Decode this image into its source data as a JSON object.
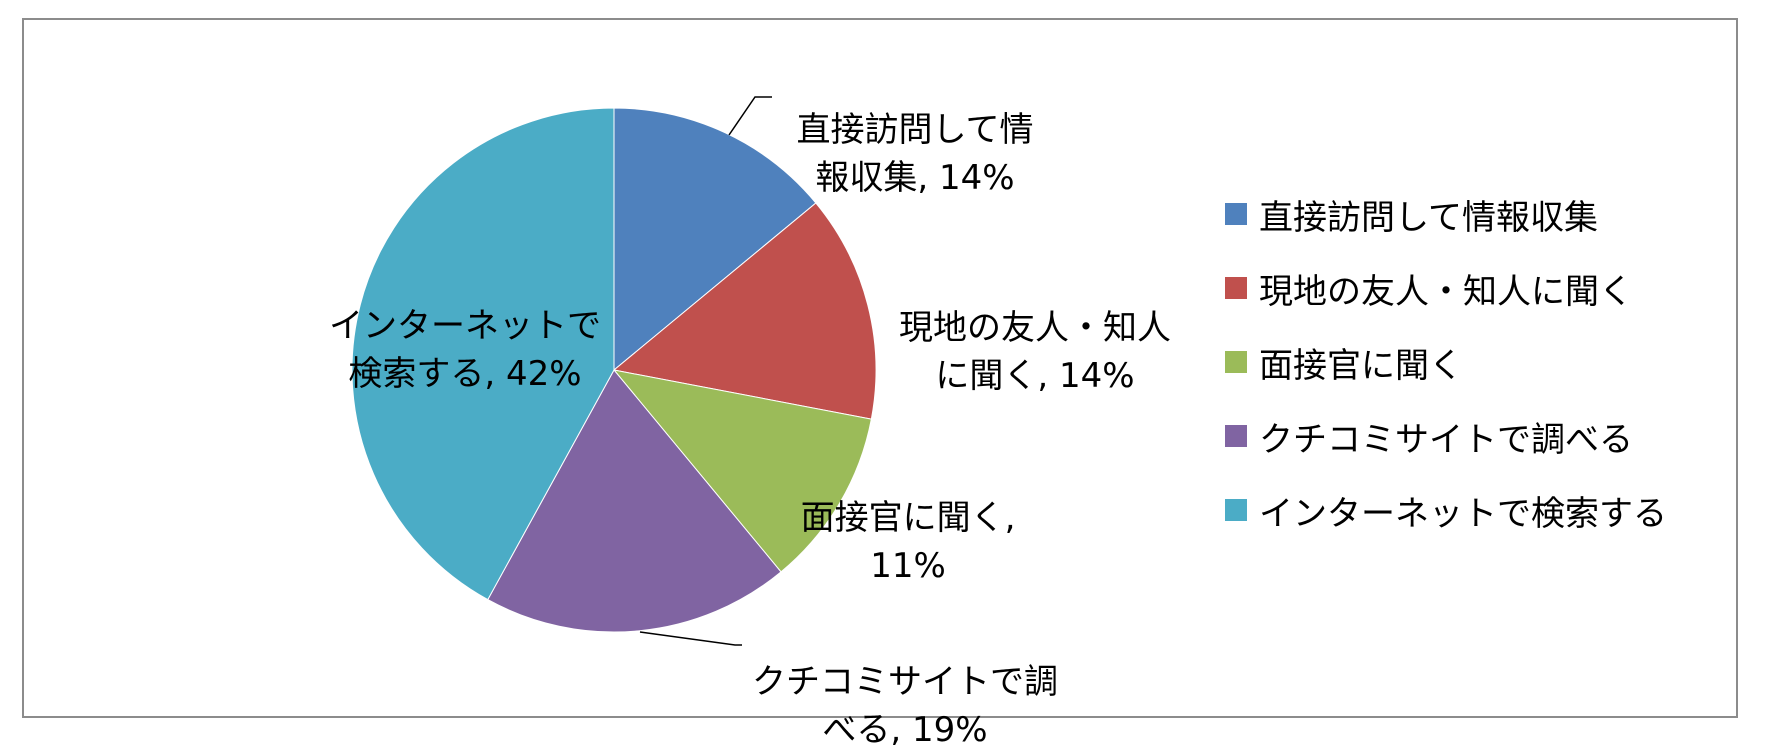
{
  "chart_data": {
    "type": "pie",
    "title": "",
    "legend_position": "right",
    "slices": [
      {
        "name": "直接訪問して情報収集",
        "value": 14,
        "label_name": "直接訪問して情\n報収集",
        "label_value": "14%",
        "color": "#4F81BD"
      },
      {
        "name": "現地の友人・知人に聞く",
        "value": 14,
        "label_name": "現地の友人・知人\nに聞く",
        "label_value": "14%",
        "color": "#C0504D"
      },
      {
        "name": "面接官に聞く",
        "value": 11,
        "label_name": "面接官に聞く",
        "label_value": "11%",
        "color": "#9BBB59"
      },
      {
        "name": "クチコミサイトで調べる",
        "value": 19,
        "label_name": "クチコミサイトで調\nべる",
        "label_value": "19%",
        "color": "#8064A2"
      },
      {
        "name": "インターネットで検索する",
        "value": 42,
        "label_name": "インターネットで\n検索する",
        "label_value": "42%",
        "color": "#4BACC6"
      }
    ]
  }
}
